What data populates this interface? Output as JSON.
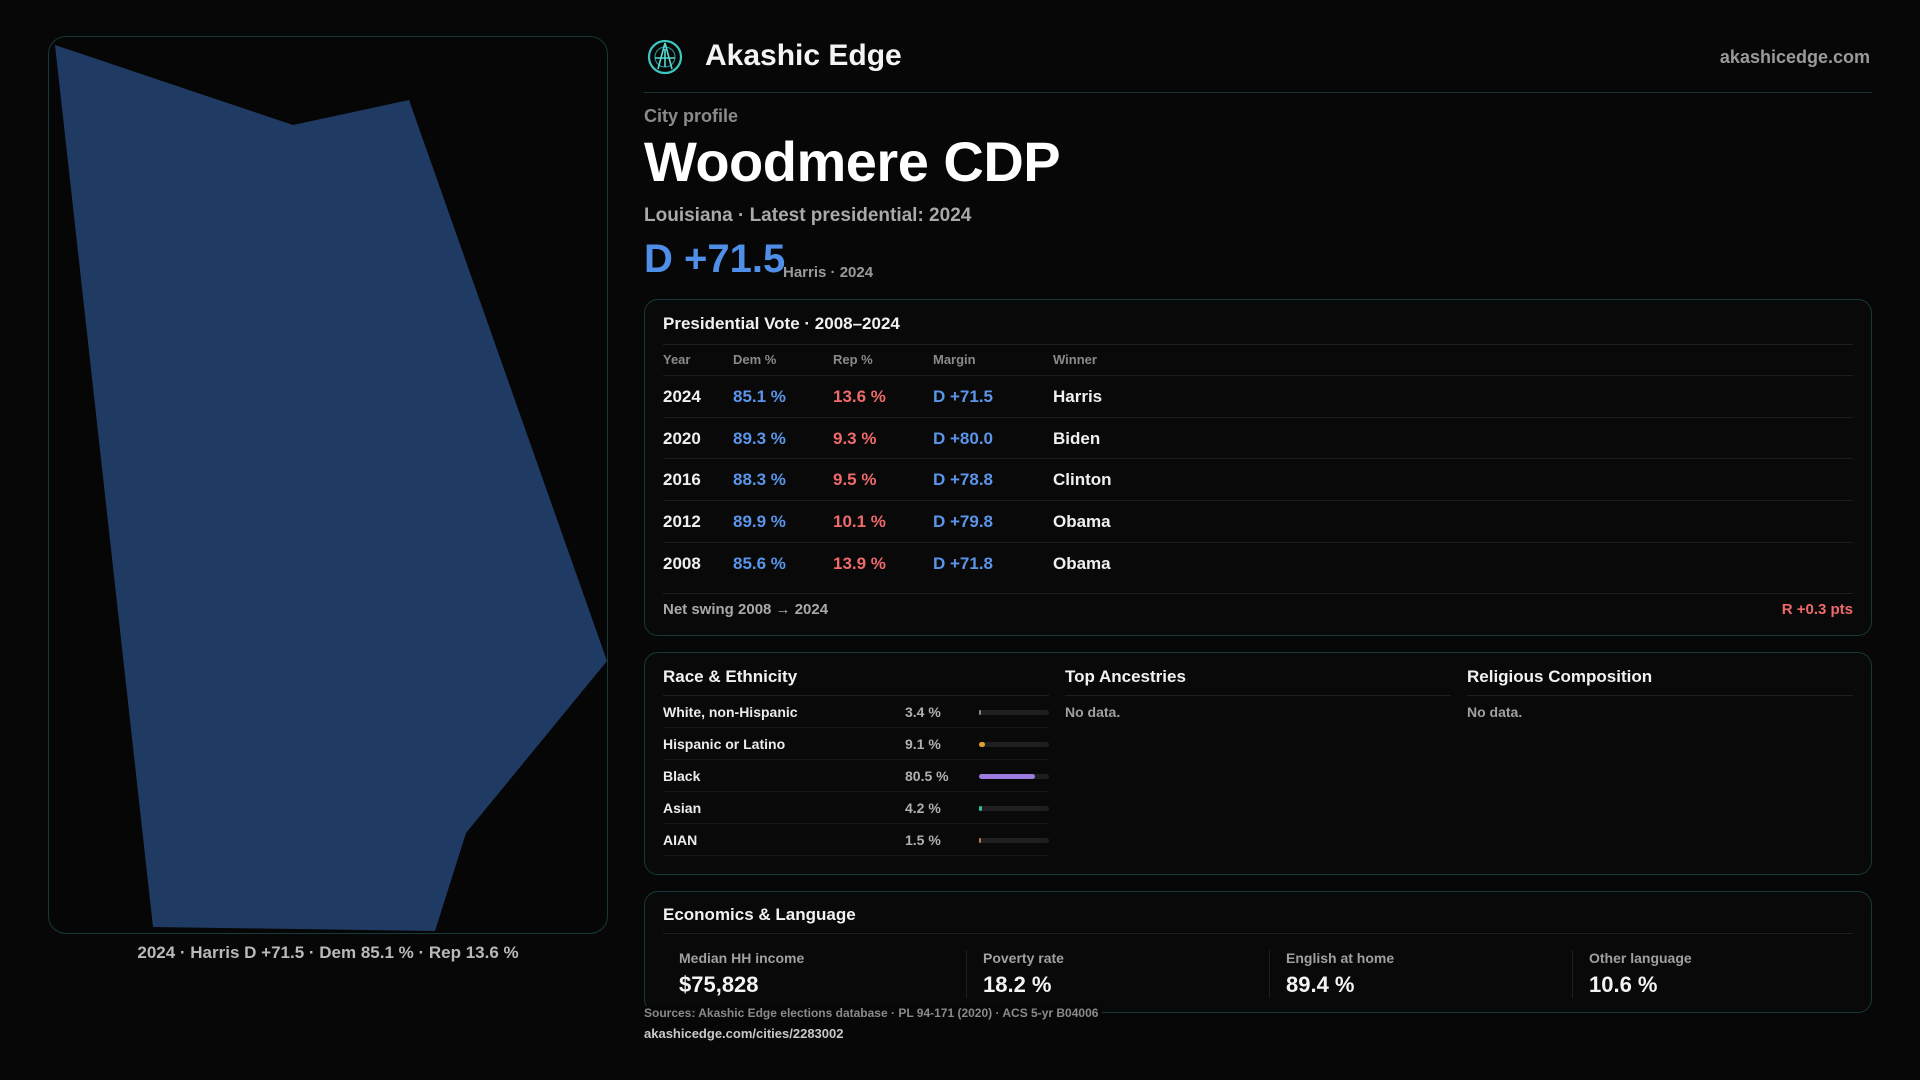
{
  "map": {
    "caption": "2024 · Harris D +71.5 · Dem 85.1 % · Rep 13.6 %",
    "fill_color": "#1f3b63"
  },
  "header": {
    "brand": "Akashic Edge",
    "url": "akashicedge.com",
    "logo_icon": "compass-globe-icon"
  },
  "profile": {
    "label": "City profile",
    "name": "Woodmere CDP",
    "subtitle": "Louisiana · Latest presidential: 2024",
    "margin": "D +71.5",
    "margin_note": "Harris · 2024"
  },
  "vote": {
    "title": "Presidential Vote · 2008–2024",
    "headers": {
      "year": "Year",
      "dem": "Dem %",
      "rep": "Rep %",
      "margin": "Margin",
      "winner": "Winner"
    },
    "rows": [
      {
        "year": "2024",
        "dem": "85.1 %",
        "rep": "13.6 %",
        "margin": "D +71.5",
        "winner": "Harris"
      },
      {
        "year": "2020",
        "dem": "89.3 %",
        "rep": "9.3 %",
        "margin": "D +80.0",
        "winner": "Biden"
      },
      {
        "year": "2016",
        "dem": "88.3 %",
        "rep": "9.5 %",
        "margin": "D +78.8",
        "winner": "Clinton"
      },
      {
        "year": "2012",
        "dem": "89.9 %",
        "rep": "10.1 %",
        "margin": "D +79.8",
        "winner": "Obama"
      },
      {
        "year": "2008",
        "dem": "85.6 %",
        "rep": "13.9 %",
        "margin": "D +71.8",
        "winner": "Obama"
      }
    ],
    "swing_label": "Net swing 2008 → 2024",
    "swing_value": "R +0.3 pts"
  },
  "demographics": {
    "race_title": "Race & Ethnicity",
    "race": [
      {
        "label": "White, non-Hispanic",
        "pct": "3.4 %",
        "value": 3.4,
        "color": "#8a8a8a"
      },
      {
        "label": "Hispanic or Latino",
        "pct": "9.1 %",
        "value": 9.1,
        "color": "#e0a32a"
      },
      {
        "label": "Black",
        "pct": "80.5 %",
        "value": 80.5,
        "color": "#9b7be0"
      },
      {
        "label": "Asian",
        "pct": "4.2 %",
        "value": 4.2,
        "color": "#2fc0a0"
      },
      {
        "label": "AIAN",
        "pct": "1.5 %",
        "value": 1.5,
        "color": "#c07a4a"
      }
    ],
    "ancestry_title": "Top Ancestries",
    "ancestry_note": "No data.",
    "religion_title": "Religious Composition",
    "religion_note": "No data."
  },
  "economics": {
    "title": "Economics & Language",
    "items": [
      {
        "label": "Median HH income",
        "value": "$75,828"
      },
      {
        "label": "Poverty rate",
        "value": "18.2 %"
      },
      {
        "label": "English at home",
        "value": "89.4 %"
      },
      {
        "label": "Other language",
        "value": "10.6 %"
      }
    ]
  },
  "footer": {
    "sources": "Sources: Akashic Edge elections database · PL 94-171 (2020) · ACS 5-yr B04006",
    "url": "akashicedge.com/cities/2283002"
  }
}
